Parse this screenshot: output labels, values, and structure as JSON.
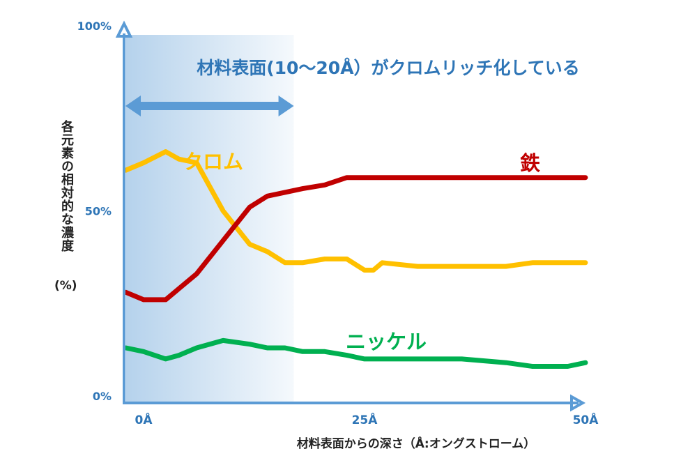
{
  "chart_data": {
    "type": "line",
    "annotation": "材料表面(10〜20Å）がクロムリッチ化している",
    "xlabel": "材料表面からの深さ（Å:オングストローム）",
    "ylabel": "各元素の相対的な濃度",
    "ylabel_unit": "(%)",
    "xlim": [
      0,
      50
    ],
    "ylim": [
      0,
      100
    ],
    "x_ticks": [
      {
        "value": 0,
        "label": "0Å"
      },
      {
        "value": 25,
        "label": "25Å"
      },
      {
        "value": 50,
        "label": "50Å"
      }
    ],
    "y_ticks": [
      {
        "value": 0,
        "label": "0%"
      },
      {
        "value": 50,
        "label": "50%"
      },
      {
        "value": 100,
        "label": "100%"
      }
    ],
    "grid": false,
    "series": [
      {
        "name": "クロム",
        "color": "#ffc000",
        "x": [
          -2,
          0,
          2.5,
          4,
          6,
          9,
          12,
          14,
          16,
          18,
          20.5,
          23,
          25,
          26,
          27,
          31,
          36,
          41,
          44,
          48,
          50
        ],
        "y": [
          61,
          63,
          66,
          64,
          63,
          50,
          41,
          39,
          36,
          36,
          37,
          37,
          34,
          34,
          36,
          35,
          35,
          35,
          36,
          36,
          36
        ]
      },
      {
        "name": "鉄",
        "color": "#c00000",
        "x": [
          -2,
          0,
          2.5,
          4,
          6,
          9,
          12,
          14,
          16,
          18,
          20.5,
          23,
          25,
          26,
          27,
          31,
          36,
          41,
          44,
          48,
          50
        ],
        "y": [
          28,
          26,
          26,
          29,
          33,
          42,
          51,
          54,
          55,
          56,
          57,
          59,
          59,
          59,
          59,
          59,
          59,
          59,
          59,
          59,
          59
        ]
      },
      {
        "name": "ニッケル",
        "color": "#00b050",
        "x": [
          -2,
          0,
          2.5,
          4,
          6,
          9,
          12,
          14,
          16,
          18,
          20.5,
          23,
          25,
          26,
          27,
          31,
          36,
          41,
          44,
          48,
          50
        ],
        "y": [
          13,
          12,
          10,
          11,
          13,
          15,
          14,
          13,
          13,
          12,
          12,
          11,
          10,
          10,
          10,
          10,
          10,
          9,
          8,
          8,
          9
        ]
      }
    ],
    "labels": [
      {
        "text": "クロム",
        "series": "クロム",
        "color": "#ffc000"
      },
      {
        "text": "鉄",
        "series": "鉄",
        "color": "#c00000"
      },
      {
        "text": "ニッケル",
        "series": "ニッケル",
        "color": "#00b050"
      }
    ],
    "highlight_region": {
      "x_start": -2,
      "x_end": 17,
      "color": "#5b9bd5"
    },
    "range_arrow": {
      "x_start": -2,
      "x_end": 17,
      "color": "#5b9bd5"
    },
    "axis_color": "#5b9bd5",
    "tick_label_color": "#2e75b6",
    "annotation_color": "#2e75b6"
  }
}
